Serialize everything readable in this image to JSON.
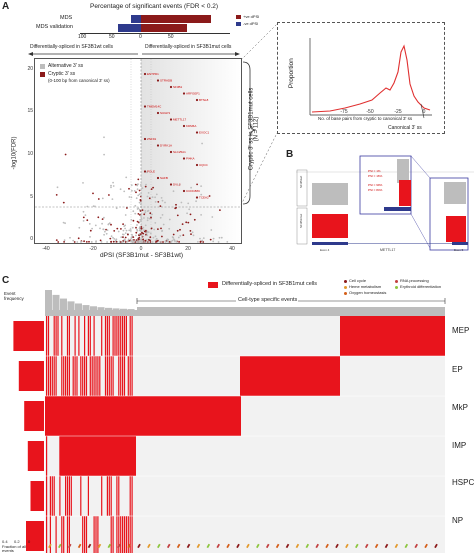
{
  "panelA": {
    "letter": "A",
    "bar_title": "Percentage of significant events (FDR < 0.2)",
    "bar_rows": [
      "MDS",
      "MDS validation"
    ],
    "bar_axis": [
      "100",
      "50",
      "0",
      "50"
    ],
    "bar_legend": [
      "+ve dPSI",
      "-ve dPSI"
    ],
    "label_left": "Differentially-spliced in SF3B1wt cells",
    "label_right": "Differentially-spliced in SF3B1mut cells",
    "legend": [
      "Alternative 3' ss",
      "Cryptic 3' ss",
      "(0-100 bp from canonical 3' ss)"
    ],
    "ylabel": "-log10(FDR)",
    "xlabel": "dPSI (SF3B1mut - SF3B1wt)",
    "xticks": [
      "-40",
      "-20",
      "0",
      "20",
      "40"
    ],
    "yticks": [
      "0",
      "5",
      "10",
      "15",
      "20"
    ],
    "bracket_label": "Cryptic 3' ss in SF3B1mut cells",
    "bracket_n": "(N = 112)",
    "gene_labels": [
      "ENTPD1",
      "STRADB",
      "SF3B1",
      "ARFGEF1",
      "BTNL8",
      "TMEM14C",
      "SUGP1",
      "METTL17",
      "KDM6A",
      "EXOC1",
      "ZNF91",
      "DYRK1A",
      "SLC25A1",
      "PI4KA",
      "UQCC",
      "POLE",
      "SAFB",
      "DVL2",
      "CCDC88C",
      "TCEA2"
    ],
    "inset_ylabel": "Proportion",
    "inset_xlabel": "No. of base pairs from cryptic to canonical 3' ss",
    "inset_xticks": [
      "-75",
      "-50",
      "-25",
      "0"
    ],
    "inset_caption": "Canonical 3' ss"
  },
  "panelB": {
    "letter": "B",
    "track_labels": [
      "SF3B1wt",
      "SF3B1mut"
    ],
    "zoom_labels": [
      "PSI = 1%",
      "PSI = 99%",
      "PSI = 16%",
      "PSI = 84%"
    ],
    "gene": "METTL17",
    "exons": [
      "Exon 4",
      "Exon 5"
    ]
  },
  "panelC": {
    "letter": "C",
    "legend_main": "Differentially-spliced in SF3B1mut cells",
    "pathways": [
      "Cell cycle",
      "Heme metabolism",
      "Oxygen homeostasis",
      "RNA processing",
      "Erythroid differentiation"
    ],
    "event_freq": "Event frequency",
    "cell_specific": "Cell-type specific events",
    "rows": [
      "MEP",
      "EP",
      "MkP",
      "IMP",
      "HSPC",
      "NP"
    ],
    "fraction_label": "Fraction of all events",
    "fraction_ticks": [
      "0.4",
      "0.2",
      "0"
    ]
  },
  "colors": {
    "red": "#e8141c",
    "darkred": "#8b1a1a",
    "blue": "#2e3a8c",
    "grey": "#bdbdbd"
  }
}
